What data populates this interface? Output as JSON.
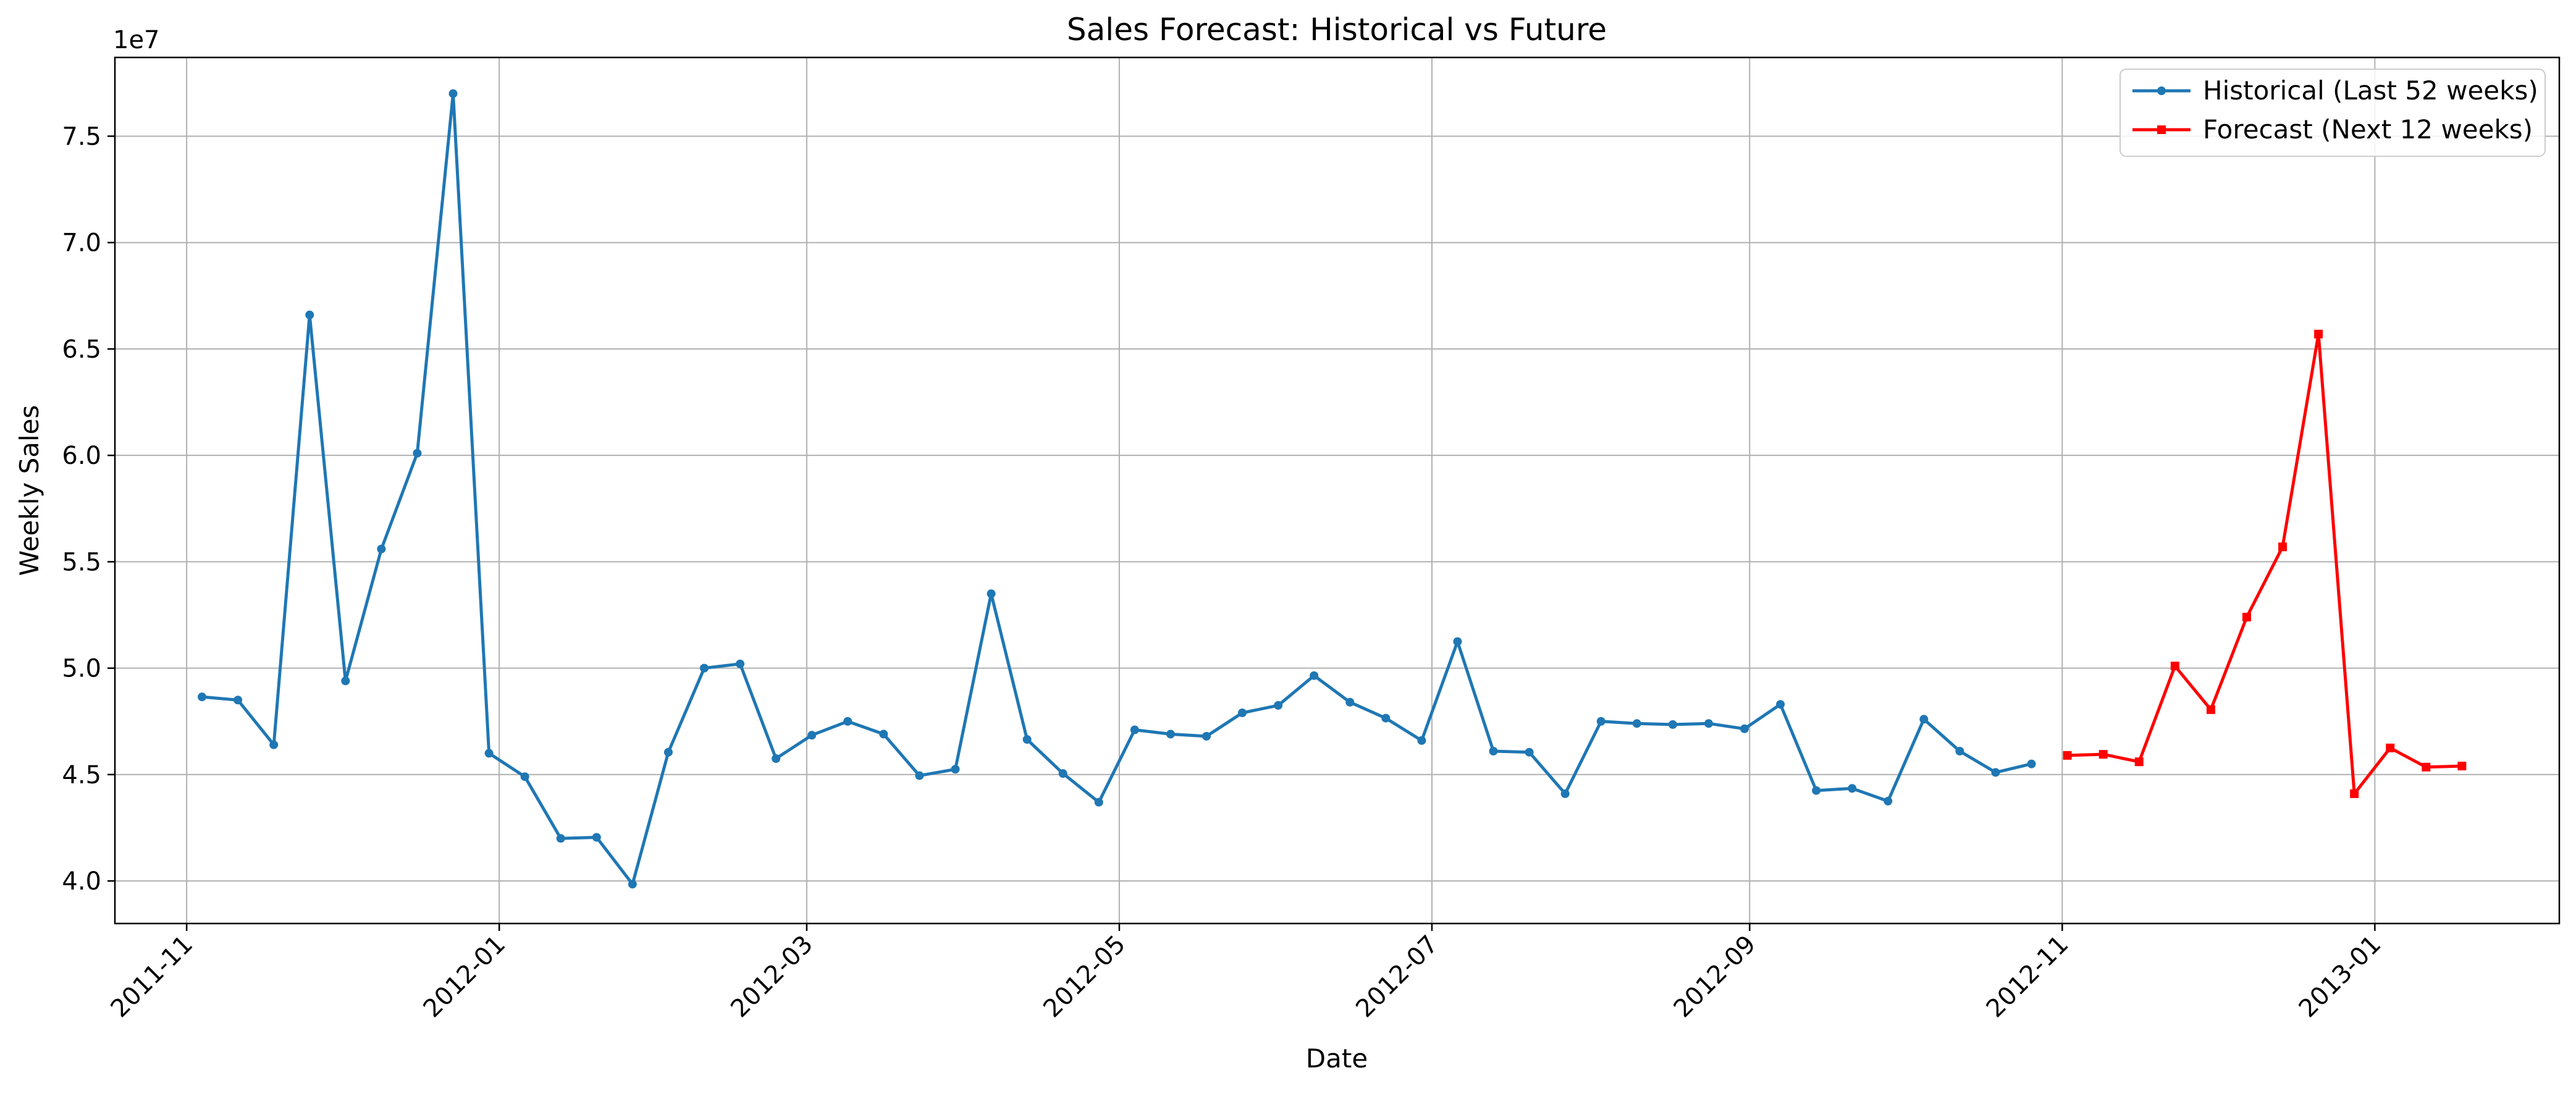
{
  "chart_data": {
    "type": "line",
    "title": "Sales Forecast: Historical vs Future",
    "xlabel": "Date",
    "ylabel": "Weekly Sales",
    "y_offset_label": "1e7",
    "x_axis_type": "date",
    "xlim": [
      "2011-10-18",
      "2013-02-06"
    ],
    "ylim": [
      38000000,
      78700000
    ],
    "grid": true,
    "legend_position": "top-right",
    "x_ticks": [
      "2011-11-01",
      "2012-01-01",
      "2012-03-01",
      "2012-05-01",
      "2012-07-01",
      "2012-09-01",
      "2012-11-01",
      "2013-01-01"
    ],
    "x_tick_labels": [
      "2011-11",
      "2012-01",
      "2012-03",
      "2012-05",
      "2012-07",
      "2012-09",
      "2012-11",
      "2013-01"
    ],
    "y_ticks": [
      40000000,
      45000000,
      50000000,
      55000000,
      60000000,
      65000000,
      70000000,
      75000000
    ],
    "y_tick_labels": [
      "4.0",
      "4.5",
      "5.0",
      "5.5",
      "6.0",
      "6.5",
      "7.0",
      "7.5"
    ],
    "series": [
      {
        "name": "Historical (Last 52 weeks)",
        "color": "#1f77b4",
        "marker": "circle",
        "x": [
          "2011-11-04",
          "2011-11-11",
          "2011-11-18",
          "2011-11-25",
          "2011-12-02",
          "2011-12-09",
          "2011-12-16",
          "2011-12-23",
          "2011-12-30",
          "2012-01-06",
          "2012-01-13",
          "2012-01-20",
          "2012-01-27",
          "2012-02-03",
          "2012-02-10",
          "2012-02-17",
          "2012-02-24",
          "2012-03-02",
          "2012-03-09",
          "2012-03-16",
          "2012-03-23",
          "2012-03-30",
          "2012-04-06",
          "2012-04-13",
          "2012-04-20",
          "2012-04-27",
          "2012-05-04",
          "2012-05-11",
          "2012-05-18",
          "2012-05-25",
          "2012-06-01",
          "2012-06-08",
          "2012-06-15",
          "2012-06-22",
          "2012-06-29",
          "2012-07-06",
          "2012-07-13",
          "2012-07-20",
          "2012-07-27",
          "2012-08-03",
          "2012-08-10",
          "2012-08-17",
          "2012-08-24",
          "2012-08-31",
          "2012-09-07",
          "2012-09-14",
          "2012-09-21",
          "2012-09-28",
          "2012-10-05",
          "2012-10-12",
          "2012-10-19",
          "2012-10-26"
        ],
        "values": [
          48650000,
          48500000,
          46400000,
          66600000,
          49400000,
          55600000,
          60100000,
          77000000,
          46000000,
          44900000,
          42000000,
          42050000,
          39850000,
          46050000,
          50000000,
          50200000,
          45750000,
          46850000,
          47500000,
          46900000,
          44950000,
          45250000,
          53500000,
          46650000,
          45050000,
          43700000,
          47100000,
          46900000,
          46800000,
          47900000,
          48250000,
          49650000,
          48400000,
          47650000,
          46600000,
          51250000,
          46100000,
          46050000,
          44100000,
          47500000,
          47400000,
          47350000,
          47400000,
          47150000,
          48300000,
          44250000,
          44350000,
          43750000,
          47600000,
          46100000,
          45100000,
          45500000
        ]
      },
      {
        "name": "Forecast (Next 12 weeks)",
        "color": "#ff0000",
        "marker": "square",
        "x": [
          "2012-11-02",
          "2012-11-09",
          "2012-11-16",
          "2012-11-23",
          "2012-11-30",
          "2012-12-07",
          "2012-12-14",
          "2012-12-21",
          "2012-12-28",
          "2013-01-04",
          "2013-01-11",
          "2013-01-18"
        ],
        "values": [
          45900000,
          45950000,
          45600000,
          50100000,
          48050000,
          52400000,
          55700000,
          65700000,
          44100000,
          46250000,
          45350000,
          45400000
        ]
      }
    ]
  }
}
